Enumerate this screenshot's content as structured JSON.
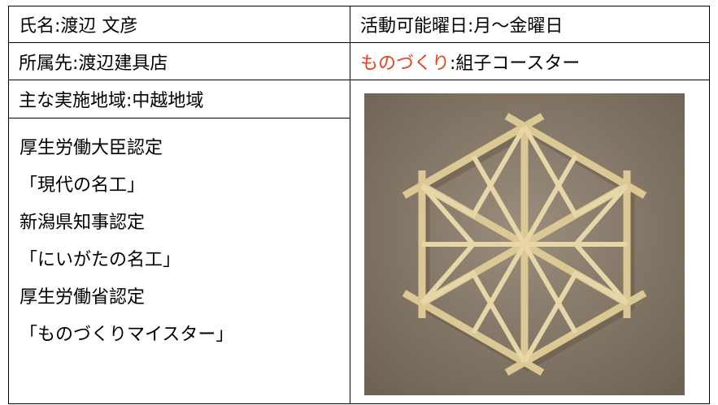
{
  "table": {
    "rows": [
      [
        "氏名:渡辺 文彦",
        "活動可能曜日:月～金曜日"
      ],
      [
        "所属先:渡辺建具店",
        {
          "highlight": "ものづくり",
          "text": ":組子コースター"
        }
      ],
      [
        "主な実施地域:中越地域"
      ]
    ],
    "certifications": [
      "厚生労働大臣認定",
      "「現代の名工」",
      "新潟県知事認定",
      "「にいがたの名工」",
      "厚生労働省認定",
      "「ものづくりマイスター」"
    ]
  }
}
